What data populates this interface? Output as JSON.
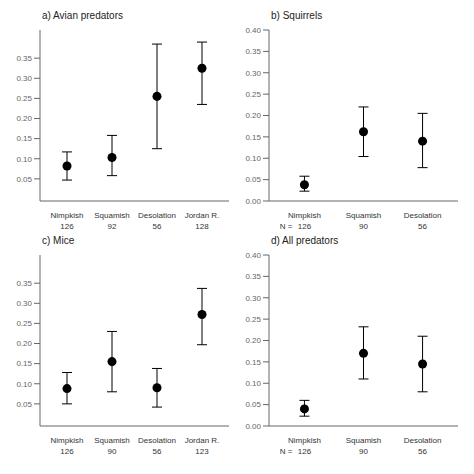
{
  "chart_data": [
    {
      "type": "scatter",
      "title": "a) Avian predators",
      "x": [
        1,
        2,
        3,
        4
      ],
      "values": [
        0.082,
        0.103,
        0.255,
        0.325
      ],
      "error_low": [
        0.035,
        0.045,
        0.13,
        0.09
      ],
      "error_high": [
        0.035,
        0.055,
        0.13,
        0.065
      ],
      "sample_sizes": [
        "126",
        "92",
        "56",
        "128"
      ],
      "xlim": [
        0.4,
        4.6
      ],
      "xticks": [
        {
          "value": 1,
          "label": "Nimpkish"
        },
        {
          "value": 2,
          "label": "Squamish"
        },
        {
          "value": 3,
          "label": "Desolation"
        },
        {
          "value": 4,
          "label": "Jordan R."
        }
      ],
      "ylim": [
        -0.005,
        0.42
      ],
      "yticks": [
        0.05,
        {
          "value": 0.1,
          "label": "0.10"
        },
        0.15,
        {
          "value": 0.2,
          "label": "0.20"
        },
        0.25,
        {
          "value": 0.3,
          "label": "0.30"
        },
        0.35
      ],
      "color": "black",
      "grid": false
    },
    {
      "type": "scatter",
      "title": "b) Squirrels",
      "x": [
        2,
        3,
        4
      ],
      "values": [
        0.038,
        0.162,
        0.14
      ],
      "error_low": [
        0.015,
        0.058,
        0.062
      ],
      "error_high": [
        0.02,
        0.058,
        0.065
      ],
      "sample_sizes": [
        "126",
        "90",
        "56"
      ],
      "sample_size_label": "N =",
      "xlim": [
        1.4,
        4.6
      ],
      "xticks": [
        {
          "value": 2,
          "label": "Nimpkish"
        },
        {
          "value": 3,
          "label": "Squamish"
        },
        {
          "value": 4,
          "label": "Desolation"
        }
      ],
      "ylim": [
        0,
        0.4
      ],
      "yticks": [
        {
          "value": 0,
          "label": "0.00"
        },
        0.05,
        {
          "value": 0.1,
          "label": "0.10"
        },
        0.15,
        {
          "value": 0.2,
          "label": "0.20"
        },
        0.25,
        {
          "value": 0.3,
          "label": "0.30"
        },
        0.35,
        {
          "value": 0.4,
          "label": "0.40"
        }
      ],
      "color": "black",
      "grid": false
    },
    {
      "type": "scatter",
      "title": "c) Mice",
      "x": [
        1,
        2,
        3,
        4
      ],
      "values": [
        0.088,
        0.155,
        0.09,
        0.272
      ],
      "error_low": [
        0.038,
        0.075,
        0.048,
        0.075
      ],
      "error_high": [
        0.04,
        0.075,
        0.048,
        0.065
      ],
      "sample_sizes": [
        "126",
        "90",
        "56",
        "123"
      ],
      "xlim": [
        0.4,
        4.6
      ],
      "xticks": [
        {
          "value": 1,
          "label": "Nimpkish"
        },
        {
          "value": 2,
          "label": "Squamish"
        },
        {
          "value": 3,
          "label": "Desolation"
        },
        {
          "value": 4,
          "label": "Jordan R."
        }
      ],
      "ylim": [
        -0.005,
        0.42
      ],
      "yticks": [
        0.05,
        {
          "value": 0.1,
          "label": "0.10"
        },
        0.15,
        {
          "value": 0.2,
          "label": "0.20"
        },
        0.25,
        {
          "value": 0.3,
          "label": "0.30"
        },
        0.35
      ],
      "color": "black",
      "grid": false
    },
    {
      "type": "scatter",
      "title": "d) All predators",
      "x": [
        2,
        3,
        4
      ],
      "values": [
        0.04,
        0.17,
        0.145
      ],
      "error_low": [
        0.017,
        0.06,
        0.065
      ],
      "error_high": [
        0.02,
        0.062,
        0.065
      ],
      "sample_sizes": [
        "126",
        "90",
        "56"
      ],
      "sample_size_label": "N =",
      "xlim": [
        1.4,
        4.6
      ],
      "xticks": [
        {
          "value": 2,
          "label": "Nimpkish"
        },
        {
          "value": 3,
          "label": "Squamish"
        },
        {
          "value": 4,
          "label": "Desolation"
        }
      ],
      "ylim": [
        0,
        0.4
      ],
      "yticks": [
        {
          "value": 0,
          "label": "0.00"
        },
        0.05,
        {
          "value": 0.1,
          "label": "0.10"
        },
        0.15,
        {
          "value": 0.2,
          "label": "0.20"
        },
        0.25,
        {
          "value": 0.3,
          "label": "0.30"
        },
        0.35,
        {
          "value": 0.4,
          "label": "0.40"
        }
      ],
      "color": "black",
      "grid": false
    }
  ]
}
